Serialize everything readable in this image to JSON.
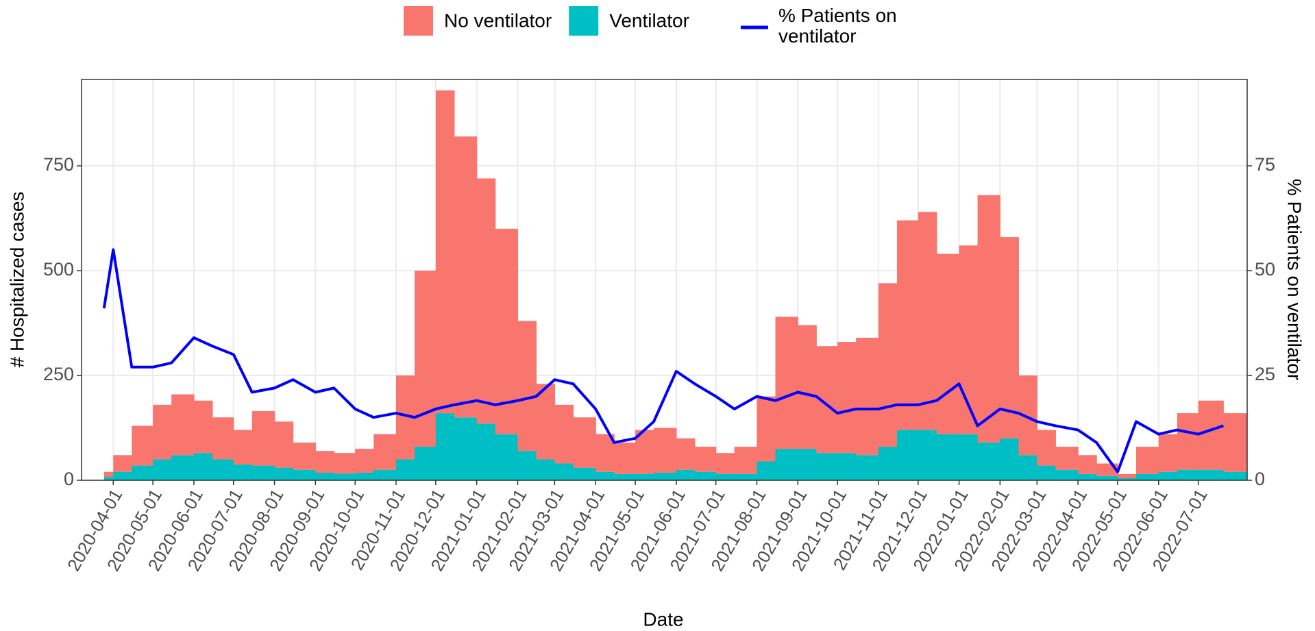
{
  "chart_data": {
    "type": "bar-line",
    "x_title": "Date",
    "y_title": "# Hospitalized cases",
    "y2_title": "% Patients on ventilator",
    "x": [
      "2020-03-25",
      "2020-04-01",
      "2020-04-15",
      "2020-05-01",
      "2020-05-15",
      "2020-06-01",
      "2020-06-15",
      "2020-07-01",
      "2020-07-15",
      "2020-08-01",
      "2020-08-15",
      "2020-09-01",
      "2020-09-15",
      "2020-10-01",
      "2020-10-15",
      "2020-11-01",
      "2020-11-15",
      "2020-12-01",
      "2020-12-15",
      "2021-01-01",
      "2021-01-15",
      "2021-02-01",
      "2021-02-15",
      "2021-03-01",
      "2021-03-15",
      "2021-04-01",
      "2021-04-15",
      "2021-05-01",
      "2021-05-15",
      "2021-06-01",
      "2021-06-15",
      "2021-07-01",
      "2021-07-15",
      "2021-08-01",
      "2021-08-15",
      "2021-09-01",
      "2021-09-15",
      "2021-10-01",
      "2021-10-15",
      "2021-11-01",
      "2021-11-15",
      "2021-12-01",
      "2021-12-15",
      "2022-01-01",
      "2022-01-15",
      "2022-02-01",
      "2022-02-15",
      "2022-03-01",
      "2022-03-15",
      "2022-04-01",
      "2022-04-15",
      "2022-05-01",
      "2022-05-15",
      "2022-06-01",
      "2022-06-15",
      "2022-07-01",
      "2022-07-20"
    ],
    "series": [
      {
        "name": "No ventilator",
        "color": "#F8766D",
        "kind": "bar",
        "values": [
          12,
          40,
          95,
          130,
          145,
          125,
          100,
          82,
          130,
          110,
          65,
          52,
          49,
          57,
          85,
          200,
          420,
          770,
          670,
          585,
          490,
          310,
          180,
          140,
          120,
          90,
          75,
          105,
          107,
          75,
          60,
          50,
          65,
          155,
          315,
          295,
          255,
          265,
          280,
          390,
          500,
          520,
          430,
          450,
          590,
          480,
          190,
          85,
          55,
          45,
          30,
          10,
          65,
          90,
          135,
          165,
          140
        ]
      },
      {
        "name": "Ventilator",
        "color": "#00BFC4",
        "kind": "bar",
        "values": [
          8,
          20,
          35,
          50,
          60,
          65,
          50,
          38,
          35,
          30,
          25,
          18,
          16,
          18,
          25,
          50,
          80,
          160,
          150,
          135,
          110,
          70,
          50,
          40,
          30,
          20,
          15,
          15,
          18,
          25,
          20,
          15,
          15,
          45,
          75,
          75,
          65,
          65,
          60,
          80,
          120,
          120,
          110,
          110,
          90,
          100,
          60,
          35,
          25,
          15,
          10,
          5,
          15,
          20,
          25,
          25,
          20
        ]
      },
      {
        "name": "% Patients on ventilator",
        "color": "#0000FF",
        "kind": "line",
        "axis": "y2",
        "values": [
          41,
          55,
          27,
          27,
          28,
          34,
          32,
          30,
          21,
          22,
          24,
          21,
          22,
          17,
          15,
          16,
          15,
          17,
          18,
          19,
          18,
          19,
          20,
          24,
          23,
          17,
          9,
          10,
          14,
          26,
          23,
          20,
          17,
          20,
          19,
          21,
          20,
          16,
          17,
          17,
          18,
          18,
          19,
          23,
          13,
          17,
          16,
          14,
          13,
          12,
          9,
          2,
          14,
          11,
          12,
          11,
          13
        ]
      }
    ],
    "xlim": [
      "2020-03-08",
      "2022-08-07"
    ],
    "xticks": [
      "2020-04-01",
      "2020-05-01",
      "2020-06-01",
      "2020-07-01",
      "2020-08-01",
      "2020-09-01",
      "2020-10-01",
      "2020-11-01",
      "2020-12-01",
      "2021-01-01",
      "2021-02-01",
      "2021-03-01",
      "2021-04-01",
      "2021-05-01",
      "2021-06-01",
      "2021-07-01",
      "2021-08-01",
      "2021-09-01",
      "2021-10-01",
      "2021-11-01",
      "2021-12-01",
      "2022-01-01",
      "2022-02-01",
      "2022-03-01",
      "2022-04-01",
      "2022-05-01",
      "2022-06-01",
      "2022-07-01"
    ],
    "ylim": [
      0,
      956
    ],
    "yticks": [
      0,
      250,
      500,
      750
    ],
    "y2lim": [
      0,
      95.6
    ],
    "y2ticks": [
      0,
      25,
      50,
      75
    ],
    "grid": true
  }
}
